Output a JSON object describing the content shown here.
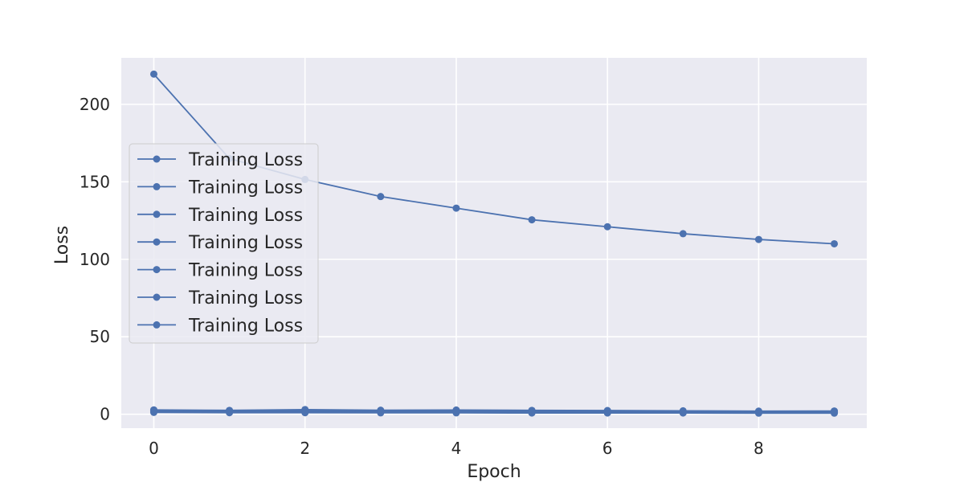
{
  "chart_data": {
    "type": "line",
    "title": "",
    "xlabel": "Epoch",
    "ylabel": "Loss",
    "xlim": [
      -0.43,
      9.43
    ],
    "ylim": [
      -9,
      230
    ],
    "xticks": [
      0,
      2,
      4,
      6,
      8
    ],
    "yticks": [
      0,
      50,
      100,
      150,
      200
    ],
    "grid": true,
    "legend_position": "center-left",
    "colors": {
      "series": "#4c72b0",
      "plot_bg": "#eaeaf2",
      "grid": "#ffffff",
      "text": "#262626"
    },
    "x": [
      0,
      1,
      2,
      3,
      4,
      5,
      6,
      7,
      8,
      9
    ],
    "series": [
      {
        "name": "Training Loss",
        "values": [
          219.5,
          165.0,
          151.5,
          140.5,
          133.0,
          125.5,
          121.0,
          116.5,
          112.8,
          110.0
        ]
      },
      {
        "name": "Training Loss",
        "values": [
          2.8,
          2.5,
          3.0,
          2.6,
          2.7,
          2.5,
          2.4,
          2.2,
          2.0,
          2.1
        ]
      },
      {
        "name": "Training Loss",
        "values": [
          2.5,
          2.2,
          2.6,
          2.3,
          2.3,
          2.1,
          2.0,
          1.9,
          1.8,
          1.8
        ]
      },
      {
        "name": "Training Loss",
        "values": [
          2.2,
          2.0,
          2.2,
          2.0,
          2.0,
          1.8,
          1.8,
          1.7,
          1.6,
          1.6
        ]
      },
      {
        "name": "Training Loss",
        "values": [
          2.0,
          1.8,
          1.8,
          1.7,
          1.6,
          1.5,
          1.5,
          1.4,
          1.3,
          1.3
        ]
      },
      {
        "name": "Training Loss",
        "values": [
          1.6,
          1.4,
          1.4,
          1.3,
          1.2,
          1.2,
          1.1,
          1.1,
          1.0,
          1.0
        ]
      },
      {
        "name": "Training Loss",
        "values": [
          1.2,
          1.0,
          1.0,
          0.9,
          0.9,
          0.8,
          0.8,
          0.8,
          0.7,
          0.7
        ]
      }
    ]
  }
}
